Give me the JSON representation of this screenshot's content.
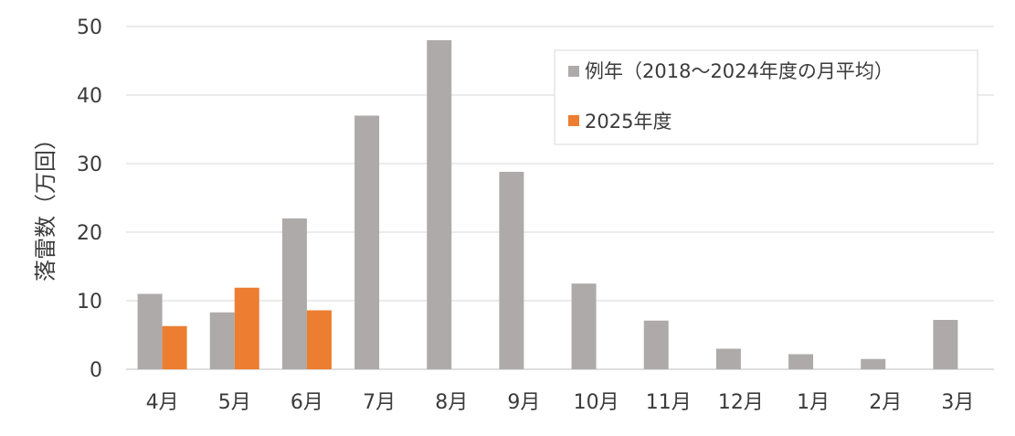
{
  "chart_data": {
    "type": "bar",
    "title": "",
    "xlabel": "",
    "ylabel": "落雷数（万回）",
    "ylim": [
      0,
      50
    ],
    "yticks": [
      "0",
      "10",
      "20",
      "30",
      "40",
      "50"
    ],
    "categories": [
      "4月",
      "5月",
      "6月",
      "7月",
      "8月",
      "9月",
      "10月",
      "11月",
      "12月",
      "1月",
      "2月",
      "3月"
    ],
    "series": [
      {
        "name": "例年（2018～2024年度の月平均）",
        "color": "#aeaaaa",
        "values": [
          11,
          8.3,
          22,
          37,
          48,
          28.8,
          12.5,
          7.1,
          3.0,
          2.2,
          1.5,
          7.2
        ]
      },
      {
        "name": "2025年度",
        "color": "#ed7d31",
        "values": [
          6.3,
          11.9,
          8.6,
          null,
          null,
          null,
          null,
          null,
          null,
          null,
          null,
          null
        ]
      }
    ],
    "grid": true,
    "legend": "top-right"
  }
}
